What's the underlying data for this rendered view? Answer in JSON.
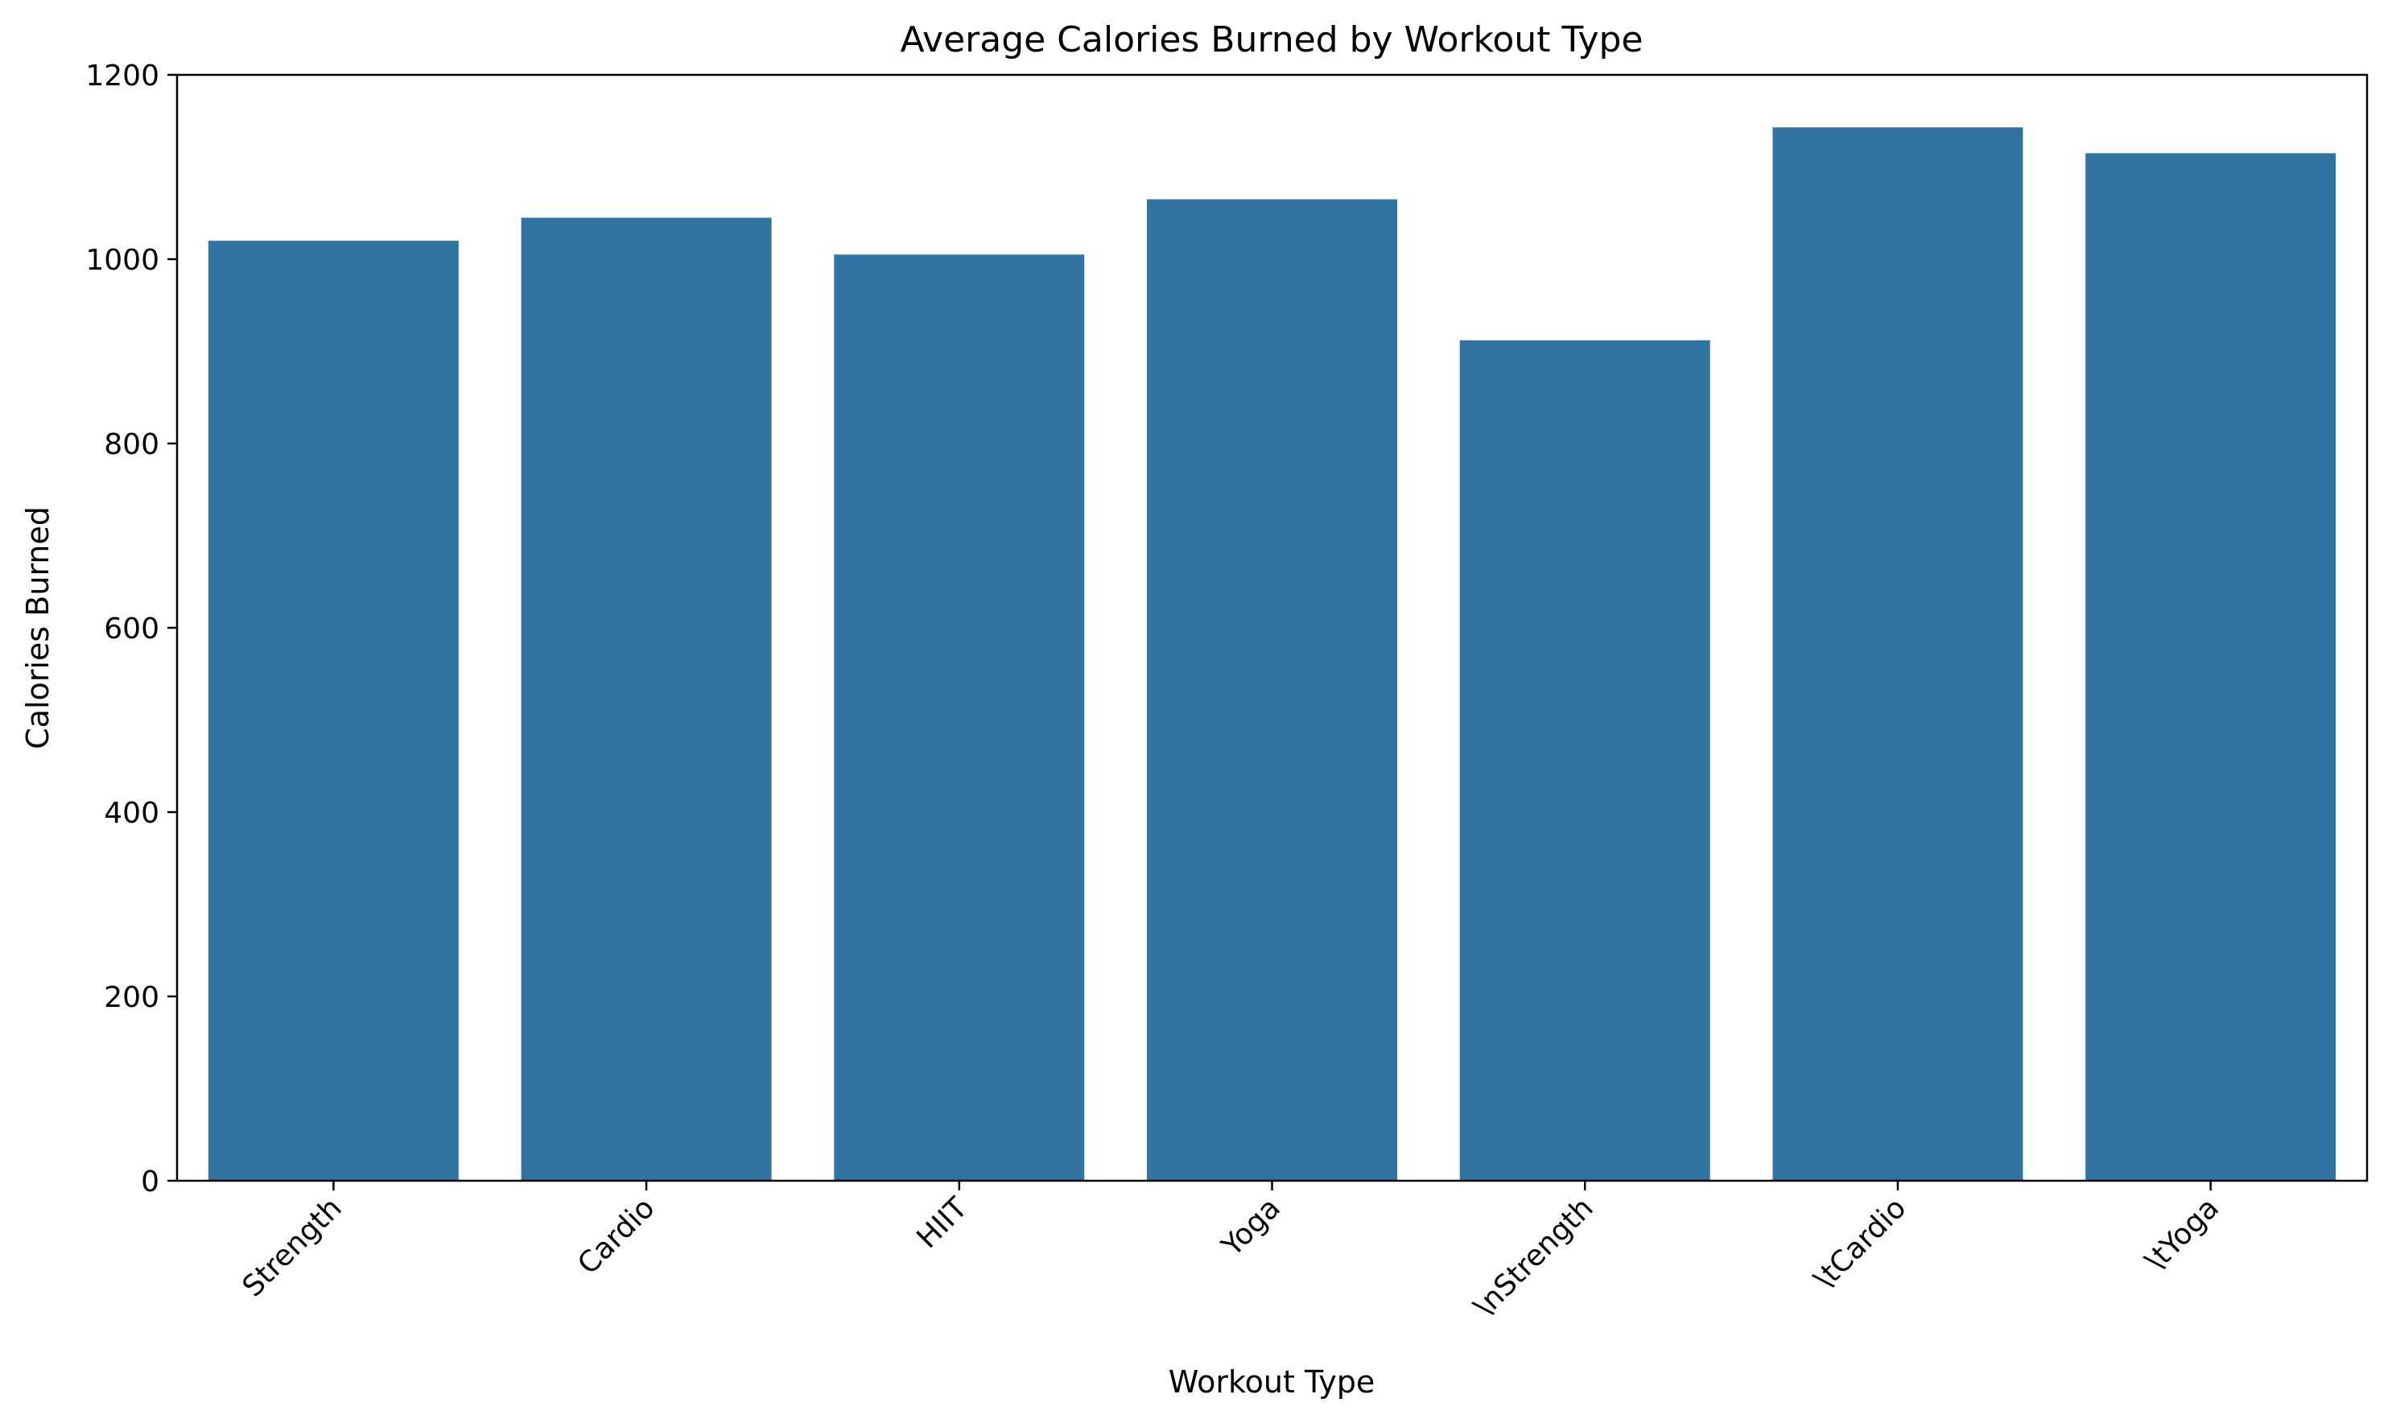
{
  "chart_data": {
    "type": "bar",
    "title": "Average Calories Burned by Workout Type",
    "xlabel": "Workout Type",
    "ylabel": "Calories Burned",
    "categories": [
      "Strength",
      "Cardio",
      "HIIT",
      "Yoga",
      "\\nStrength",
      "\\tCardio",
      "\\tYoga"
    ],
    "values": [
      1020,
      1045,
      1005,
      1065,
      912,
      1143,
      1115
    ],
    "ylim": [
      0,
      1200
    ],
    "yticks": [
      0,
      200,
      400,
      600,
      800,
      1000,
      1200
    ],
    "grid": false,
    "legend": "none",
    "bar_color": "#3274a1",
    "xtick_rotation_deg": 45
  }
}
